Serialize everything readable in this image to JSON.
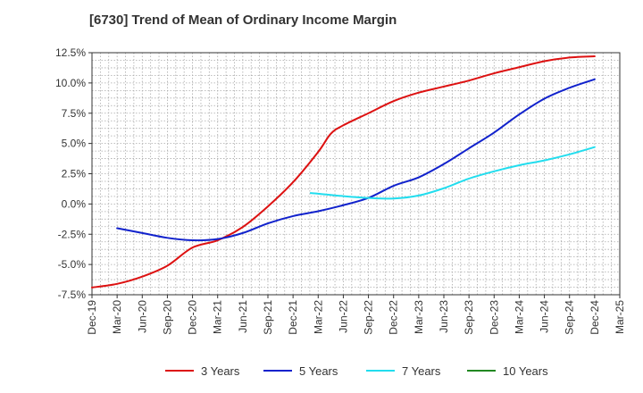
{
  "title": "[6730]  Trend of Mean of Ordinary Income Margin",
  "chart_data": {
    "type": "line",
    "title": "[6730]  Trend of Mean of Ordinary Income Margin",
    "xlabel": "",
    "ylabel": "",
    "x_tick_labels": [
      "Dec-19",
      "Mar-20",
      "Jun-20",
      "Sep-20",
      "Dec-20",
      "Mar-21",
      "Jun-21",
      "Sep-21",
      "Dec-21",
      "Mar-22",
      "Jun-22",
      "Sep-22",
      "Dec-22",
      "Mar-23",
      "Jun-23",
      "Sep-23",
      "Dec-23",
      "Mar-24",
      "Jun-24",
      "Sep-24",
      "Dec-24",
      "Mar-25"
    ],
    "y_tick_labels": [
      "12.5%",
      "10.0%",
      "7.5%",
      "5.0%",
      "2.5%",
      "0.0%",
      "-2.5%",
      "-5.0%",
      "-7.5%"
    ],
    "y_ticks": [
      12.5,
      10.0,
      7.5,
      5.0,
      2.5,
      0.0,
      -2.5,
      -5.0,
      -7.5
    ],
    "ylim": [
      -7.5,
      12.5
    ],
    "grid": true,
    "legend_position": "bottom",
    "x_unit": "quarter index (0 = Dec-19)",
    "series": [
      {
        "name": "3 Years",
        "color": "#dd1111",
        "points": [
          [
            0,
            -6.9
          ],
          [
            1,
            -6.6
          ],
          [
            2,
            -6.0
          ],
          [
            3,
            -5.1
          ],
          [
            4,
            -3.6
          ],
          [
            5,
            -3.0
          ],
          [
            6,
            -1.9
          ],
          [
            7,
            -0.2
          ],
          [
            8,
            1.8
          ],
          [
            9,
            4.3
          ],
          [
            9.5,
            5.8
          ],
          [
            10,
            6.5
          ],
          [
            11,
            7.5
          ],
          [
            12,
            8.5
          ],
          [
            13,
            9.2
          ],
          [
            14,
            9.7
          ],
          [
            15,
            10.2
          ],
          [
            16,
            10.8
          ],
          [
            17,
            11.3
          ],
          [
            18,
            11.8
          ],
          [
            19,
            12.1
          ],
          [
            20,
            12.2
          ]
        ]
      },
      {
        "name": "5 Years",
        "color": "#1122cc",
        "points": [
          [
            1,
            -2.0
          ],
          [
            2,
            -2.4
          ],
          [
            3,
            -2.8
          ],
          [
            4,
            -3.0
          ],
          [
            5,
            -2.9
          ],
          [
            6,
            -2.4
          ],
          [
            7,
            -1.6
          ],
          [
            8,
            -1.0
          ],
          [
            9,
            -0.6
          ],
          [
            10,
            -0.1
          ],
          [
            11,
            0.5
          ],
          [
            12,
            1.5
          ],
          [
            13,
            2.2
          ],
          [
            14,
            3.3
          ],
          [
            15,
            4.6
          ],
          [
            16,
            5.9
          ],
          [
            17,
            7.4
          ],
          [
            18,
            8.7
          ],
          [
            19,
            9.6
          ],
          [
            20,
            10.3
          ]
        ]
      },
      {
        "name": "7 Years",
        "color": "#22ddee",
        "points": [
          [
            8.7,
            0.9
          ],
          [
            9,
            0.85
          ],
          [
            10,
            0.65
          ],
          [
            11,
            0.5
          ],
          [
            12,
            0.45
          ],
          [
            13,
            0.7
          ],
          [
            14,
            1.3
          ],
          [
            15,
            2.1
          ],
          [
            16,
            2.7
          ],
          [
            17,
            3.2
          ],
          [
            18,
            3.6
          ],
          [
            19,
            4.1
          ],
          [
            20,
            4.7
          ]
        ]
      },
      {
        "name": "10 Years",
        "color": "#228822",
        "points": []
      }
    ]
  }
}
